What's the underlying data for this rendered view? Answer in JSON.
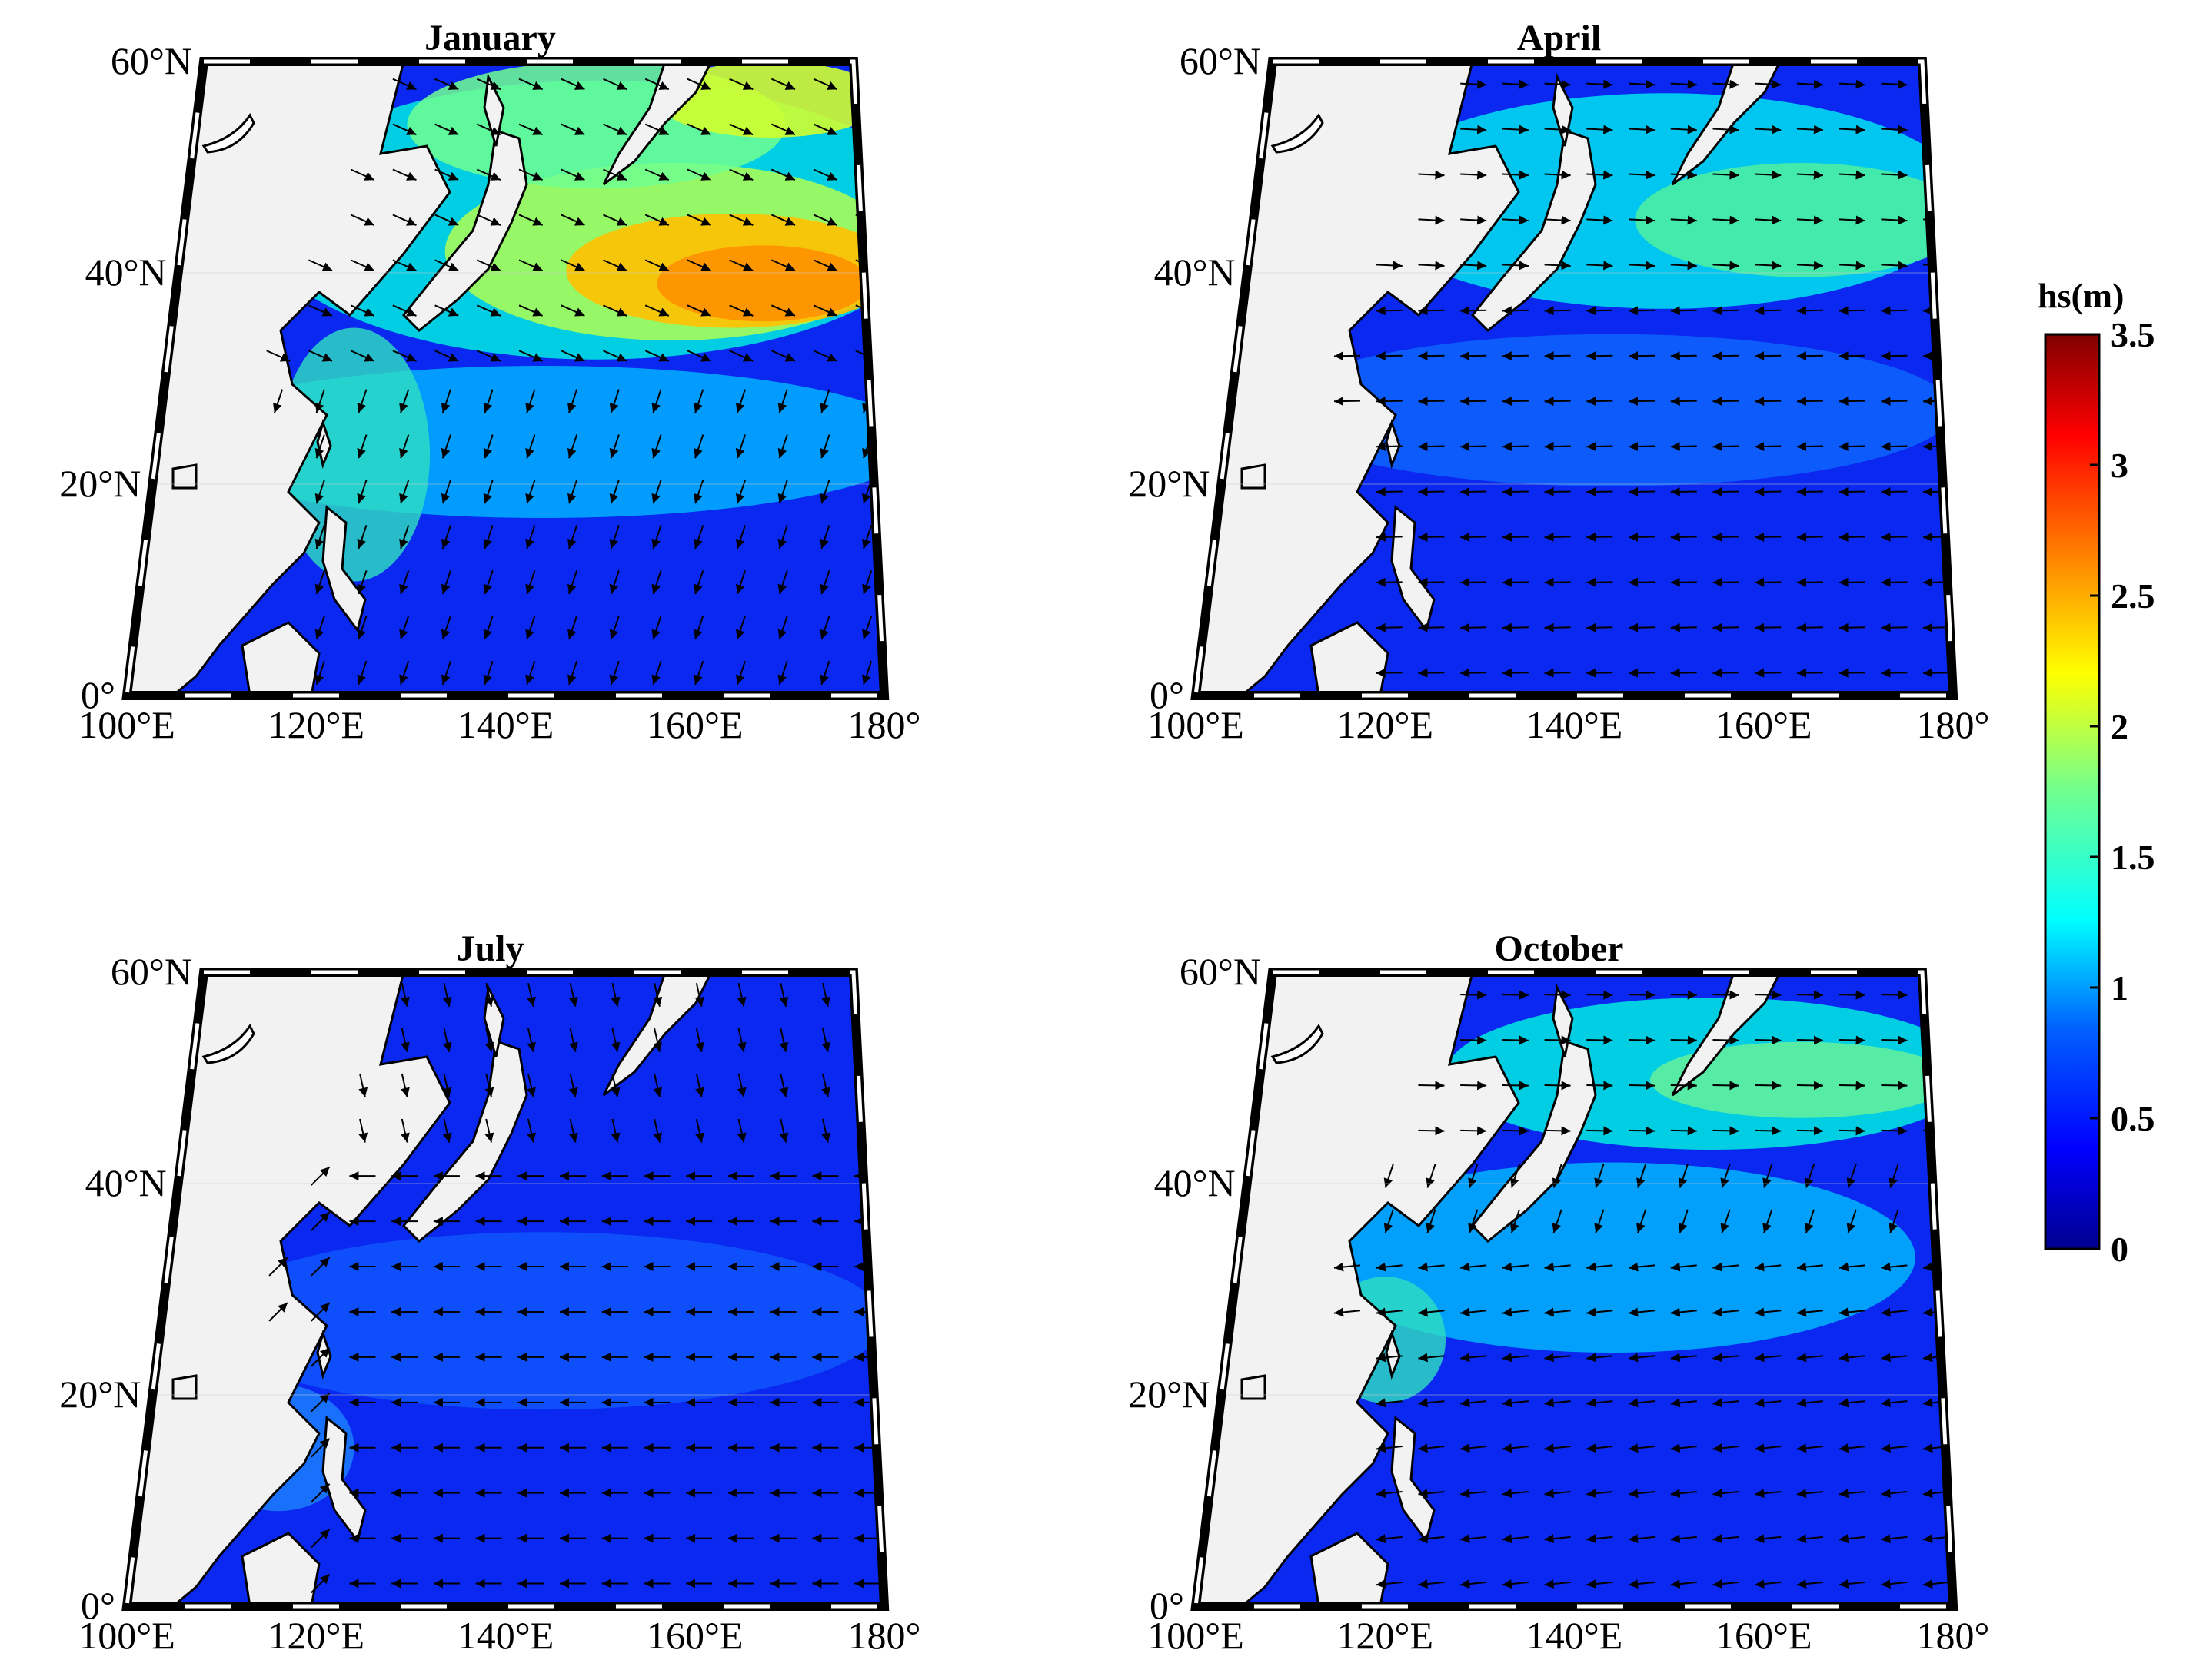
{
  "figure": {
    "panels": [
      {
        "id": "jan",
        "title": "January"
      },
      {
        "id": "apr",
        "title": "April"
      },
      {
        "id": "jul",
        "title": "July"
      },
      {
        "id": "oct",
        "title": "October"
      }
    ],
    "lat_labels": [
      "60°N",
      "40°N",
      "20°N",
      "0°"
    ],
    "lon_labels": [
      "100°E",
      "120°E",
      "140°E",
      "160°E",
      "180°"
    ],
    "colorbar": {
      "title": "hs(m)",
      "range": [
        0,
        3.5
      ],
      "tick_labels": [
        "3.5",
        "3",
        "2.5",
        "2",
        "1.5",
        "1",
        "0.5",
        "0"
      ],
      "colormap": "jet",
      "colors": [
        "#00008f",
        "#0000ff",
        "#0080ff",
        "#00ffff",
        "#80ff80",
        "#ffff00",
        "#ff8000",
        "#ff0000",
        "#800000"
      ]
    },
    "land_color": "#f2f2f2"
  },
  "chart_data": {
    "type": "heatmap",
    "variable": "hs(m)",
    "extent": {
      "lon": [
        100,
        180
      ],
      "lat": [
        0,
        60
      ]
    },
    "panels": [
      {
        "title": "January",
        "max_hs_approx": 2.5,
        "wind_pattern": "northerly winter monsoon west, westerlies north of 30°N, trade-easterlies south"
      },
      {
        "title": "April",
        "max_hs_approx": 1.6,
        "wind_pattern": "westerlies north, easterlies south"
      },
      {
        "title": "July",
        "max_hs_approx": 0.8,
        "wind_pattern": "southwesterly monsoon, easterly trades"
      },
      {
        "title": "October",
        "max_hs_approx": 1.6,
        "wind_pattern": "westerlies north, northeasterly monsoon west"
      }
    ]
  }
}
